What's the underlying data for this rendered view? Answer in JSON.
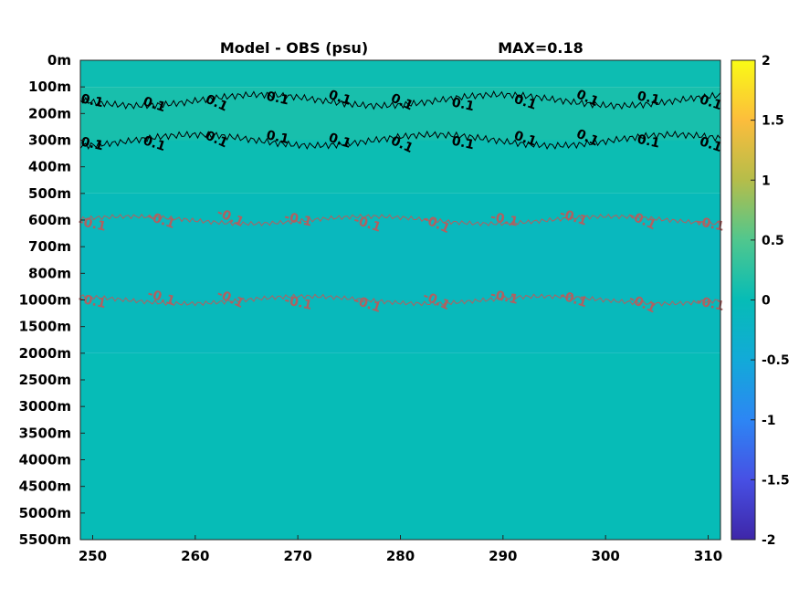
{
  "chart_data": {
    "type": "heatmap",
    "title": "Model - OBS (psu)",
    "max_label": "MAX=0.18",
    "x": {
      "ticks": [
        250,
        260,
        270,
        280,
        290,
        300,
        310
      ],
      "range": [
        248.8,
        311.2
      ]
    },
    "y": {
      "ticks": [
        "0m",
        "100m",
        "200m",
        "300m",
        "400m",
        "500m",
        "600m",
        "700m",
        "800m",
        "1000m",
        "1500m",
        "2000m",
        "2500m",
        "3000m",
        "3500m",
        "4000m",
        "4500m",
        "5000m",
        "5500m"
      ],
      "reversed": true
    },
    "colorbar": {
      "ticks": [
        2,
        1.5,
        1,
        0.5,
        0,
        -0.5,
        -1,
        -1.5,
        -2
      ],
      "range": [
        -2,
        2
      ],
      "colormap": "parula"
    },
    "depth_bands": [
      {
        "from": "0m",
        "to": "100m",
        "value": 0.05
      },
      {
        "from": "100m",
        "to": "300m",
        "value": 0.12
      },
      {
        "from": "300m",
        "to": "500m",
        "value": 0.04
      },
      {
        "from": "500m",
        "to": "600m",
        "value": -0.05
      },
      {
        "from": "600m",
        "to": "1000m",
        "value": -0.12
      },
      {
        "from": "1000m",
        "to": "2000m",
        "value": -0.08
      },
      {
        "from": "2000m",
        "to": "5500m",
        "value": -0.01
      }
    ],
    "contours": [
      {
        "level": 0.1,
        "color": "#000000",
        "depth": "150m",
        "labels": [
          "0.1",
          "0.1",
          "0.1",
          "0.1",
          "0.1",
          "0.1",
          "0.1",
          "0.1",
          "0.1",
          "0.1",
          "0.1"
        ]
      },
      {
        "level": 0.1,
        "color": "#000000",
        "depth": "300m",
        "labels": [
          "0.1",
          "0.1",
          "0.1",
          "0.1",
          "0.1",
          "0.1",
          "0.1",
          "0.1",
          "0.1",
          "0.1",
          "0.1"
        ]
      },
      {
        "level": -0.1,
        "color": "#b06060",
        "depth": "600m",
        "labels": [
          "-0.1",
          "-0.1",
          "-0.1",
          "-0.1",
          "-0.1",
          "-0.1",
          "-0.1",
          "-0.1",
          "-0.1",
          "-0.1"
        ]
      },
      {
        "level": -0.1,
        "color": "#b06060",
        "depth": "1000m",
        "labels": [
          "-0.1",
          "-0.1",
          "-0.1",
          "-0.1",
          "-0.1",
          "-0.1",
          "-0.1",
          "-0.1",
          "-0.1",
          "-0.1"
        ]
      }
    ]
  }
}
